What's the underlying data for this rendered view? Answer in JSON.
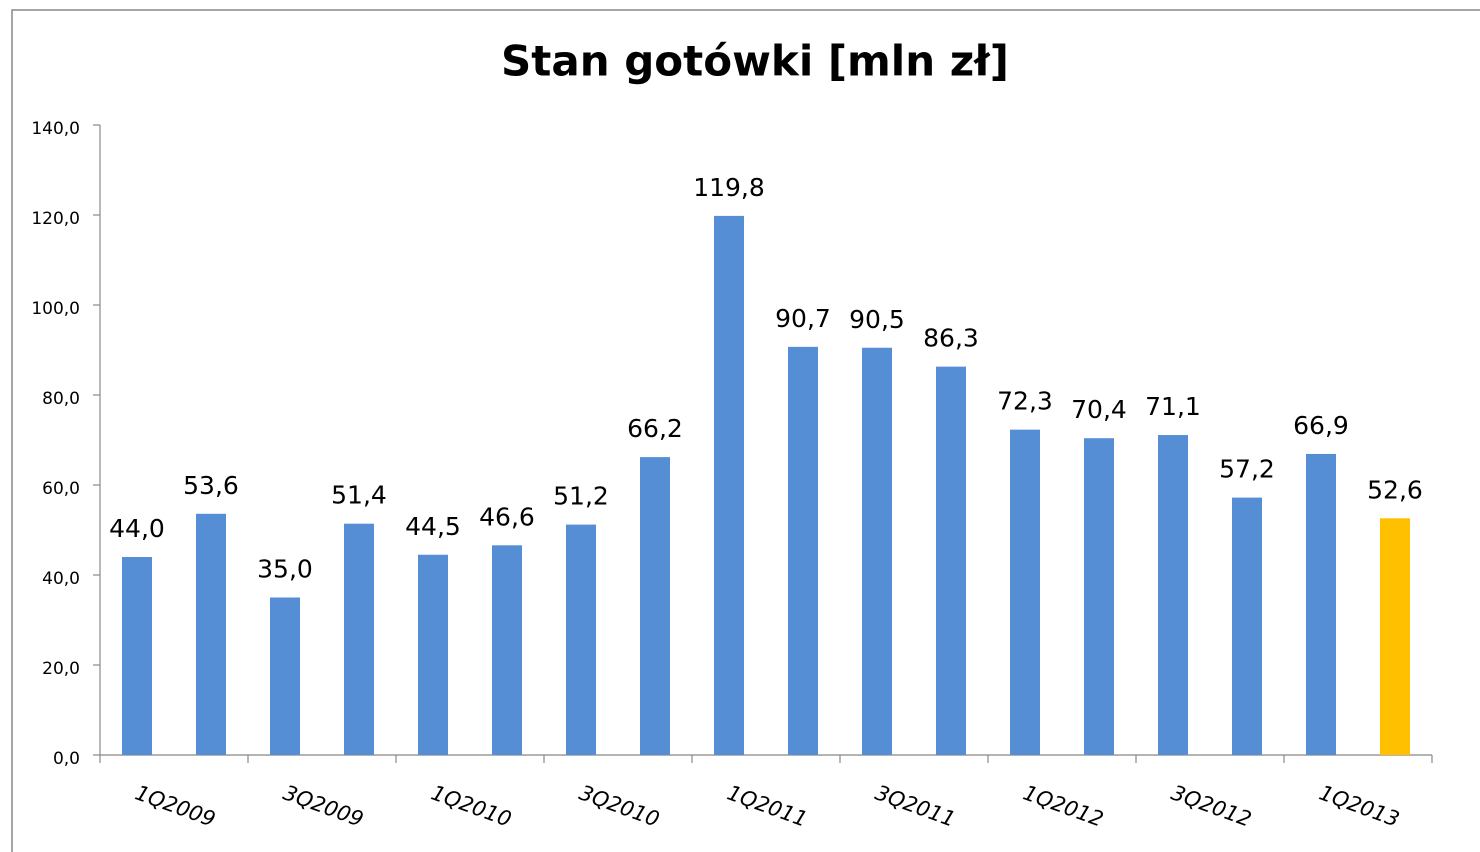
{
  "chart_data": {
    "type": "bar",
    "title": "Stan gotówki [mln zł]",
    "categories": [
      "1Q2009",
      null,
      "3Q2009",
      null,
      "1Q2010",
      null,
      "3Q2010",
      null,
      "1Q2011",
      null,
      "3Q2011",
      null,
      "1Q2012",
      null,
      "3Q2012",
      null,
      "1Q2013",
      null
    ],
    "values": [
      44.0,
      53.6,
      35.0,
      51.4,
      44.5,
      46.6,
      51.2,
      66.2,
      119.8,
      90.7,
      90.5,
      86.3,
      72.3,
      70.4,
      71.1,
      57.2,
      66.9,
      52.6
    ],
    "value_labels": [
      "44,0",
      "53,6",
      "35,0",
      "51,4",
      "44,5",
      "46,6",
      "51,2",
      "66,2",
      "119,8",
      "90,7",
      "90,5",
      "86,3",
      "72,3",
      "70,4",
      "71,1",
      "57,2",
      "66,9",
      "52,6"
    ],
    "colors": [
      "#558ed5",
      "#558ed5",
      "#558ed5",
      "#558ed5",
      "#558ed5",
      "#558ed5",
      "#558ed5",
      "#558ed5",
      "#558ed5",
      "#558ed5",
      "#558ed5",
      "#558ed5",
      "#558ed5",
      "#558ed5",
      "#558ed5",
      "#558ed5",
      "#558ed5",
      "#ffc000"
    ],
    "ylim": [
      0,
      140
    ],
    "yticks": [
      {
        "value": 0,
        "label": "0,0"
      },
      {
        "value": 20,
        "label": "20,0"
      },
      {
        "value": 40,
        "label": "40,0"
      },
      {
        "value": 60,
        "label": "60,0"
      },
      {
        "value": 80,
        "label": "80,0"
      },
      {
        "value": 100,
        "label": "100,0"
      },
      {
        "value": 120,
        "label": "120,0"
      },
      {
        "value": 140,
        "label": "140,0"
      }
    ],
    "grid": false
  }
}
